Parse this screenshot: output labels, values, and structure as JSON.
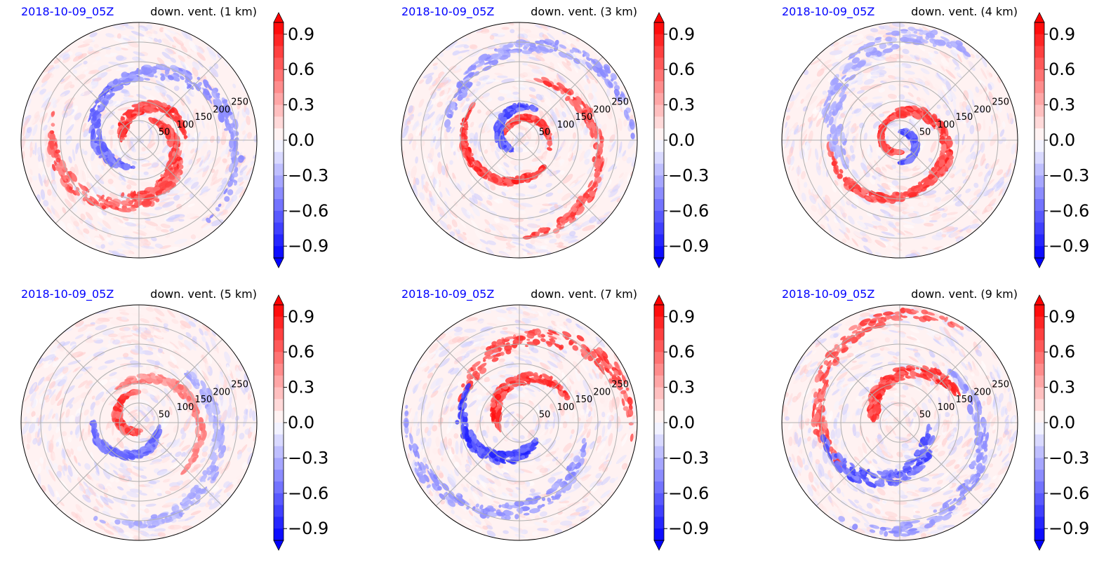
{
  "figure": {
    "colors": {
      "positive": "#ff0000",
      "negative": "#0000ff",
      "zero": "#ffffff",
      "date_text": "#0000ff",
      "grid": "#b0b0b0"
    }
  },
  "chart_data": [
    {
      "type": "heatmap",
      "projection": "polar",
      "date_label": "2018-10-09_05Z",
      "title": "down. vent. (1 km)",
      "radial_ticks": [
        "50",
        "100",
        "150",
        "200",
        "250"
      ],
      "radial_tick_values": [
        50,
        100,
        150,
        200,
        250
      ],
      "radial_max": 300,
      "colorbar": {
        "ticks": [
          "0.9",
          "0.6",
          "0.3",
          "0.0",
          "−0.3",
          "−0.6",
          "−0.9"
        ],
        "tick_values": [
          0.9,
          0.6,
          0.3,
          0.0,
          -0.3,
          -0.6,
          -0.9
        ],
        "vmin": -1.0,
        "vmax": 1.0,
        "extend": "both",
        "cmap": "bwr"
      },
      "grid": true
    },
    {
      "type": "heatmap",
      "projection": "polar",
      "date_label": "2018-10-09_05Z",
      "title": "down. vent. (3 km)",
      "radial_ticks": [
        "50",
        "100",
        "150",
        "200",
        "250"
      ],
      "radial_tick_values": [
        50,
        100,
        150,
        200,
        250
      ],
      "radial_max": 300,
      "colorbar": {
        "ticks": [
          "0.9",
          "0.6",
          "0.3",
          "0.0",
          "−0.3",
          "−0.6",
          "−0.9"
        ],
        "tick_values": [
          0.9,
          0.6,
          0.3,
          0.0,
          -0.3,
          -0.6,
          -0.9
        ],
        "vmin": -1.0,
        "vmax": 1.0,
        "extend": "both",
        "cmap": "bwr"
      },
      "grid": true
    },
    {
      "type": "heatmap",
      "projection": "polar",
      "date_label": "2018-10-09_05Z",
      "title": "down. vent. (4 km)",
      "radial_ticks": [
        "50",
        "100",
        "150",
        "200",
        "250"
      ],
      "radial_tick_values": [
        50,
        100,
        150,
        200,
        250
      ],
      "radial_max": 300,
      "colorbar": {
        "ticks": [
          "0.9",
          "0.6",
          "0.3",
          "0.0",
          "−0.3",
          "−0.6",
          "−0.9"
        ],
        "tick_values": [
          0.9,
          0.6,
          0.3,
          0.0,
          -0.3,
          -0.6,
          -0.9
        ],
        "vmin": -1.0,
        "vmax": 1.0,
        "extend": "both",
        "cmap": "bwr"
      },
      "grid": true
    },
    {
      "type": "heatmap",
      "projection": "polar",
      "date_label": "2018-10-09_05Z",
      "title": "down. vent. (5 km)",
      "radial_ticks": [
        "50",
        "100",
        "150",
        "200",
        "250"
      ],
      "radial_tick_values": [
        50,
        100,
        150,
        200,
        250
      ],
      "radial_max": 300,
      "colorbar": {
        "ticks": [
          "0.9",
          "0.6",
          "0.3",
          "0.0",
          "−0.3",
          "−0.6",
          "−0.9"
        ],
        "tick_values": [
          0.9,
          0.6,
          0.3,
          0.0,
          -0.3,
          -0.6,
          -0.9
        ],
        "vmin": -1.0,
        "vmax": 1.0,
        "extend": "both",
        "cmap": "bwr"
      },
      "grid": true
    },
    {
      "type": "heatmap",
      "projection": "polar",
      "date_label": "2018-10-09_05Z",
      "title": "down. vent. (7 km)",
      "radial_ticks": [
        "50",
        "100",
        "150",
        "200",
        "250"
      ],
      "radial_tick_values": [
        50,
        100,
        150,
        200,
        250
      ],
      "radial_max": 300,
      "colorbar": {
        "ticks": [
          "0.9",
          "0.6",
          "0.3",
          "0.0",
          "−0.3",
          "−0.6",
          "−0.9"
        ],
        "tick_values": [
          0.9,
          0.6,
          0.3,
          0.0,
          -0.3,
          -0.6,
          -0.9
        ],
        "vmin": -1.0,
        "vmax": 1.0,
        "extend": "both",
        "cmap": "bwr"
      },
      "grid": true
    },
    {
      "type": "heatmap",
      "projection": "polar",
      "date_label": "2018-10-09_05Z",
      "title": "down. vent. (9 km)",
      "radial_ticks": [
        "50",
        "100",
        "150",
        "200",
        "250"
      ],
      "radial_tick_values": [
        50,
        100,
        150,
        200,
        250
      ],
      "radial_max": 300,
      "colorbar": {
        "ticks": [
          "0.9",
          "0.6",
          "0.3",
          "0.0",
          "−0.3",
          "−0.6",
          "−0.9"
        ],
        "tick_values": [
          0.9,
          0.6,
          0.3,
          0.0,
          -0.3,
          -0.6,
          -0.9
        ],
        "vmin": -1.0,
        "vmax": 1.0,
        "extend": "both",
        "cmap": "bwr"
      },
      "grid": true
    }
  ]
}
